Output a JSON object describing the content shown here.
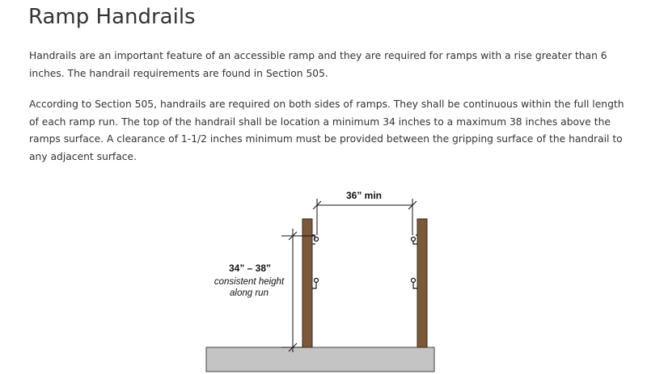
{
  "page": {
    "title": "Ramp Handrails",
    "paragraphs": [
      "Handrails are an important feature of an accessible ramp and they are required for ramps with a rise greater than 6 inches. The handrail requirements are found in Section 505.",
      "According to Section 505, handrails are required on both sides of ramps. They shall be continuous within the full length of each ramp run. The top of the handrail shall be location a minimum 34 inches to a maximum 38 inches above the ramps surface. A clearance of 1-1/2 inches minimum must be provided between the gripping surface of the handrail to any adjacent surface."
    ]
  },
  "figure": {
    "width_label": "36” min",
    "height_label": "34” – 38”",
    "height_note_line1": "consistent height",
    "height_note_line2": "along run",
    "colors": {
      "post": "#7a5a3a",
      "post_edge": "#3a2a1a",
      "ground": "#c4c4c4",
      "ground_edge": "#444444",
      "dimension_line": "#111111"
    }
  }
}
